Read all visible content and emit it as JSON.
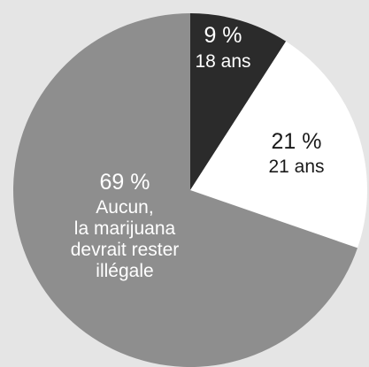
{
  "background_color": "#e5e5e5",
  "chart_data": {
    "type": "pie",
    "title": "",
    "start_angle_deg": 0,
    "direction": "clockwise",
    "slices": [
      {
        "percent_label": "9 %",
        "description_lines": [
          "18 ans"
        ],
        "value": 9,
        "color": "#2b2b2b",
        "text_color": "#ffffff"
      },
      {
        "percent_label": "21 %",
        "description_lines": [
          "21 ans"
        ],
        "value": 21,
        "color": "#ffffff",
        "text_color": "#1a1a1a"
      },
      {
        "percent_label": "69 %",
        "description_lines": [
          "Aucun,",
          "la marijuana",
          "devrait rester",
          "illégale"
        ],
        "value": 69,
        "color": "#8e8e8e",
        "text_color": "#ffffff"
      }
    ]
  }
}
